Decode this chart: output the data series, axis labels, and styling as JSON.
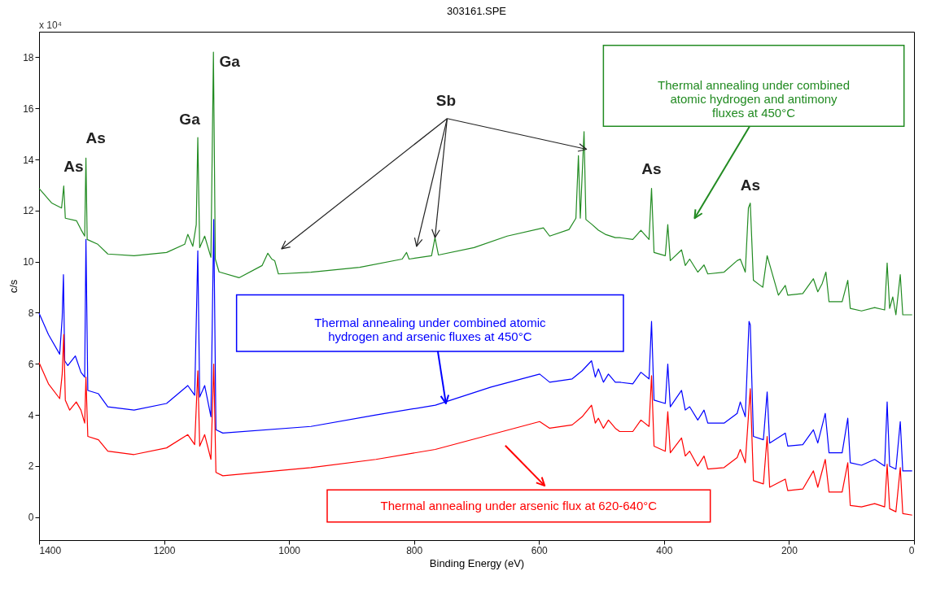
{
  "chart_data": {
    "type": "line",
    "title": "303161.SPE",
    "xlabel": "Binding Energy (eV)",
    "ylabel": "c/s",
    "xlim": [
      1400,
      0
    ],
    "ylim": [
      -0.9,
      19
    ],
    "xticks": [
      0,
      200,
      400,
      600,
      800,
      {
        "value": 1000,
        "label": "1000"
      },
      {
        "value": 1200,
        "label": "1200"
      },
      {
        "value": 1400,
        "label": "1400"
      }
    ],
    "yticks": [
      0,
      2,
      4,
      6,
      8,
      10,
      12,
      14,
      16,
      18
    ],
    "grid": false,
    "legend": "bottom",
    "marker": "none",
    "line_style": "solid",
    "annotations": [
      "x 10⁴",
      {
        "text": "As",
        "x": 1360.5,
        "y": 12.96
      },
      {
        "text": "As",
        "x": 1325,
        "y": 14.05
      },
      {
        "text": "Ga",
        "x": 1146,
        "y": 14.86
      },
      {
        "text": "Ga",
        "x": 1121,
        "y": 18.2
      },
      {
        "text": "Sb",
        "x": 766.5,
        "y": 10.94
      },
      {
        "text": "As",
        "x": 420,
        "y": 12.87
      },
      {
        "text": "As",
        "x": 262,
        "y": 12.29
      }
    ],
    "series": [
      {
        "name": "Thermal annealing under combined atomic hydrogen and antimony fluxes at 450°C",
        "color": "#228b22",
        "x": [
          1400,
          1380,
          1364,
          1360.5,
          1358,
          1340,
          1333,
          1327,
          1325,
          1323,
          1306,
          1290,
          1248,
          1196,
          1167,
          1162,
          1154,
          1148.5,
          1146,
          1143,
          1135,
          1125,
          1121,
          1118,
          1112,
          1080,
          1043,
          1034,
          1027.6,
          1023,
          1017,
          965,
          887,
          819,
          812,
          808,
          772,
          766.5,
          761,
          704,
          651,
          593,
          583,
          552,
          541,
          537,
          534,
          528,
          525,
          515,
          505,
          494,
          478,
          471,
          450,
          437,
          424,
          420,
          416,
          398,
          394,
          390,
          372,
          366,
          359,
          346,
          336,
          330,
          304,
          283,
          278,
          270,
          265,
          262,
          257,
          246,
          242,
          235,
          217,
          206,
          202,
          178,
          161,
          154,
          147,
          141,
          136,
          115,
          106,
          102,
          84,
          63,
          47,
          43,
          39,
          34,
          29,
          22,
          18,
          3
        ],
        "values": [
          12.87,
          12.3,
          12.1,
          12.96,
          11.7,
          11.6,
          11.26,
          11.0,
          14.05,
          10.87,
          10.68,
          10.3,
          10.23,
          10.36,
          10.68,
          11.07,
          10.6,
          11.45,
          14.86,
          10.55,
          11.0,
          10.17,
          18.2,
          10.1,
          9.6,
          9.37,
          9.85,
          10.33,
          10.1,
          10.04,
          9.52,
          9.59,
          9.78,
          10.1,
          10.36,
          10.1,
          10.23,
          10.94,
          10.26,
          10.55,
          11.0,
          11.32,
          11.0,
          11.26,
          11.7,
          14.15,
          11.7,
          15.09,
          11.65,
          11.45,
          11.23,
          11.07,
          10.94,
          10.94,
          10.87,
          11.23,
          10.87,
          12.87,
          10.36,
          10.23,
          11.45,
          10.04,
          10.46,
          9.85,
          10.1,
          9.59,
          9.87,
          9.52,
          9.59,
          10.04,
          10.1,
          9.59,
          12.1,
          12.29,
          9.27,
          9.07,
          9.0,
          10.23,
          8.69,
          9.07,
          8.69,
          8.75,
          9.33,
          8.82,
          9.14,
          9.59,
          8.43,
          8.43,
          9.27,
          8.17,
          8.07,
          8.2,
          8.11,
          9.95,
          8.17,
          8.62,
          7.92,
          9.49,
          7.92,
          7.92
        ]
      },
      {
        "name": "Thermal annealing under combined atomic hydrogen and arsenic fluxes at 450°C",
        "color": "#0000ff",
        "x": [
          1400,
          1385,
          1367,
          1363,
          1361,
          1359,
          1354,
          1342,
          1333,
          1327,
          1325,
          1322,
          1305,
          1290,
          1248,
          1196,
          1162,
          1151,
          1146,
          1143,
          1135,
          1125,
          1120.5,
          1117,
          1106,
          965,
          861,
          766,
          677,
          599,
          583,
          547,
          531,
          516,
          510,
          505,
          497,
          489,
          478,
          471,
          450,
          437,
          424,
          420,
          416,
          398,
          394,
          390,
          372,
          366,
          359,
          346,
          336,
          330,
          304,
          283,
          278,
          270,
          264,
          262,
          257,
          241,
          235,
          231,
          206,
          202,
          178,
          161,
          154,
          142,
          136,
          115,
          106,
          102,
          84,
          63,
          47,
          43,
          39,
          29,
          22,
          18,
          3
        ],
        "values": [
          7.98,
          7.15,
          6.38,
          7.8,
          9.49,
          6.12,
          5.93,
          6.31,
          5.67,
          5.48,
          10.87,
          4.96,
          4.83,
          4.32,
          4.19,
          4.45,
          5.15,
          4.77,
          10.42,
          4.7,
          5.15,
          3.93,
          11.65,
          3.42,
          3.29,
          3.55,
          4.0,
          4.38,
          5.09,
          5.6,
          5.28,
          5.41,
          5.73,
          6.12,
          5.48,
          5.8,
          5.28,
          5.6,
          5.28,
          5.28,
          5.22,
          5.67,
          5.41,
          7.66,
          4.58,
          4.45,
          5.99,
          4.32,
          4.96,
          4.19,
          4.32,
          3.8,
          4.19,
          3.68,
          3.68,
          4.06,
          4.51,
          3.93,
          7.66,
          7.53,
          3.16,
          3.03,
          4.9,
          2.9,
          3.29,
          2.78,
          2.84,
          3.42,
          2.9,
          4.06,
          2.52,
          2.52,
          3.87,
          2.13,
          2.03,
          2.26,
          2.0,
          4.51,
          2.0,
          1.88,
          3.74,
          1.81,
          1.81
        ]
      },
      {
        "name": "Thermal annealing under arsenic flux at 620-640°C",
        "color": "#ff0000",
        "x": [
          1400,
          1385,
          1367,
          1363,
          1360.5,
          1358,
          1351,
          1340.5,
          1333,
          1327,
          1325,
          1322,
          1305,
          1290,
          1248,
          1196,
          1162,
          1151,
          1146,
          1143,
          1135,
          1125,
          1120.5,
          1117,
          1106,
          965,
          861,
          766,
          677,
          599,
          583,
          547,
          531,
          516,
          510,
          505,
          497,
          489,
          478,
          471,
          450,
          437,
          424,
          420,
          416,
          398,
          394,
          390,
          372,
          366,
          359,
          346,
          336,
          330,
          304,
          283,
          278,
          270,
          262,
          257,
          241,
          235,
          231,
          206,
          202,
          178,
          161,
          154,
          142,
          136,
          115,
          106,
          102,
          84,
          63,
          47,
          43,
          39,
          29,
          22,
          18,
          3
        ],
        "values": [
          6.05,
          5.22,
          4.64,
          5.6,
          7.15,
          4.58,
          4.19,
          4.51,
          4.19,
          3.68,
          5.48,
          3.16,
          3.03,
          2.58,
          2.45,
          2.71,
          3.23,
          2.84,
          5.73,
          2.78,
          3.23,
          2.26,
          5.99,
          1.75,
          1.62,
          1.94,
          2.26,
          2.65,
          3.23,
          3.74,
          3.48,
          3.61,
          3.93,
          4.38,
          3.68,
          3.87,
          3.48,
          3.8,
          3.48,
          3.35,
          3.35,
          3.8,
          3.55,
          5.54,
          2.78,
          2.58,
          4.13,
          2.52,
          3.1,
          2.39,
          2.58,
          2.0,
          2.39,
          1.88,
          1.94,
          2.33,
          2.65,
          2.13,
          5.03,
          1.43,
          1.3,
          3.16,
          1.17,
          1.49,
          1.04,
          1.1,
          1.81,
          1.17,
          2.26,
          0.98,
          0.98,
          2.13,
          0.46,
          0.4,
          0.53,
          0.4,
          2.07,
          0.33,
          0.21,
          1.94,
          0.14,
          0.08
        ]
      }
    ]
  }
}
